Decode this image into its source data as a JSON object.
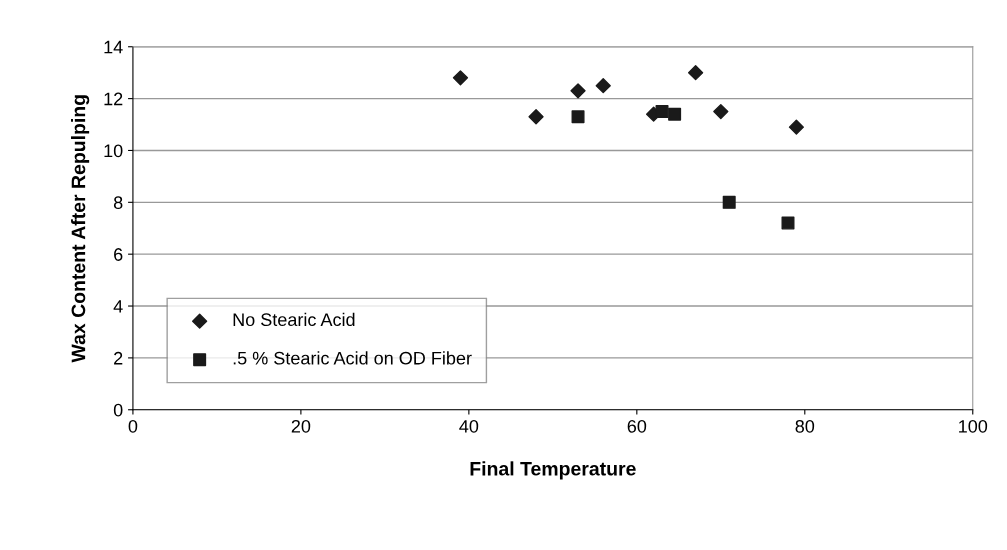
{
  "chart_data": {
    "type": "scatter",
    "xlabel": "Final Temperature",
    "ylabel": "Wax Content After Repulping",
    "xlim": [
      0,
      100
    ],
    "xticks": [
      0,
      20,
      40,
      60,
      80,
      100
    ],
    "ylim": [
      0,
      14
    ],
    "yticks": [
      0,
      2,
      4,
      6,
      8,
      10,
      12,
      14
    ],
    "grid": "y",
    "legend": "bottom left",
    "series": [
      {
        "name": "No Stearic Acid",
        "color": "#1a1a1a",
        "marker": "diamond",
        "x": [
          39,
          48,
          53,
          56,
          62,
          67,
          70,
          79
        ],
        "values": [
          12.8,
          11.3,
          12.3,
          12.5,
          11.4,
          13.0,
          11.5,
          10.9
        ]
      },
      {
        "name": ".5 % Stearic Acid on OD Fiber",
        "color": "#1a1a1a",
        "marker": "square",
        "x": [
          53,
          63,
          64.5,
          71,
          78
        ],
        "values": [
          11.3,
          11.5,
          11.4,
          8.0,
          7.2
        ]
      }
    ]
  }
}
